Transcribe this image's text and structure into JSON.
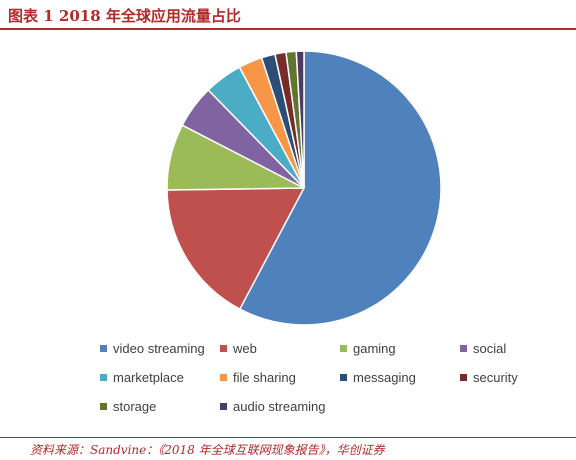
{
  "header": {
    "title": "图表 1 2018 年全球应用流量占比"
  },
  "footer": {
    "source": "资料来源：Sandvine：《2018 年全球互联网现象报告》，华创证券"
  },
  "colors": {
    "accent": "#b22a2a"
  },
  "chart_data": {
    "type": "pie",
    "title": "",
    "legend_placement": "bottom",
    "categories": [
      "video streaming",
      "web",
      "gaming",
      "social",
      "marketplace",
      "file sharing",
      "messaging",
      "security",
      "storage",
      "audio streaming"
    ],
    "values": [
      57.7,
      17.0,
      7.8,
      5.1,
      4.5,
      2.8,
      1.6,
      1.3,
      1.2,
      0.9
    ],
    "colors": [
      "#4f81bd",
      "#c0504d",
      "#9bbb59",
      "#8064a2",
      "#4bacc6",
      "#f79646",
      "#2c4d75",
      "#772c2a",
      "#5f7530",
      "#4d3b62"
    ]
  }
}
